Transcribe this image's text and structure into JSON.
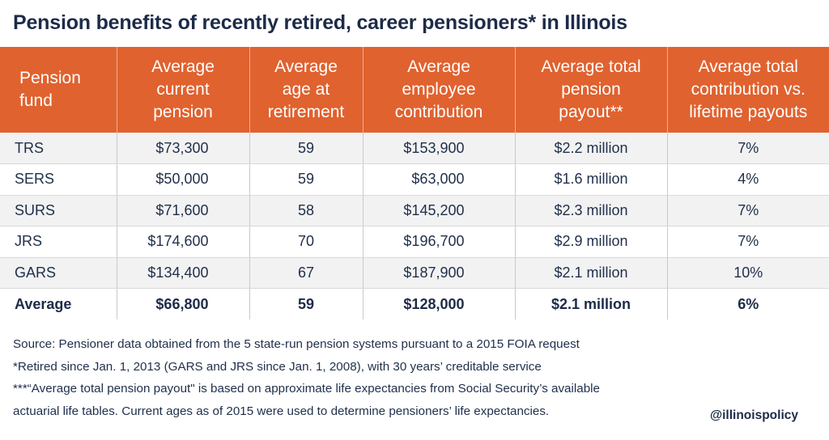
{
  "title": "Pension benefits of recently retired, career pensioners* in Illinois",
  "headers": [
    "Pension\nfund",
    "Average\ncurrent\npension",
    "Average\nage at\nretirement",
    "Average\nemployee\ncontribution",
    "Average total\npension\npayout**",
    "Average total\ncontribution vs.\nlifetime payouts"
  ],
  "rows": [
    {
      "fund": "TRS",
      "pension": "$73,300",
      "age": "59",
      "contribution": "$153,900",
      "payout": "$2.2 million",
      "ratio": "7%"
    },
    {
      "fund": "SERS",
      "pension": "$50,000",
      "age": "59",
      "contribution": "$63,000",
      "payout": "$1.6 million",
      "ratio": "4%"
    },
    {
      "fund": "SURS",
      "pension": "$71,600",
      "age": "58",
      "contribution": "$145,200",
      "payout": "$2.3 million",
      "ratio": "7%"
    },
    {
      "fund": "JRS",
      "pension": "$174,600",
      "age": "70",
      "contribution": "$196,700",
      "payout": "$2.9 million",
      "ratio": "7%"
    },
    {
      "fund": "GARS",
      "pension": "$134,400",
      "age": "67",
      "contribution": "$187,900",
      "payout": "$2.1 million",
      "ratio": "10%"
    },
    {
      "fund": "Average",
      "pension": "$66,800",
      "age": "59",
      "contribution": "$128,000",
      "payout": "$2.1 million",
      "ratio": "6%"
    }
  ],
  "notes": [
    "Source: Pensioner data obtained from the 5 state-run pension systems pursuant to a 2015 FOIA request",
    "*Retired since Jan. 1, 2013 (GARS and JRS since Jan. 1, 2008), with 30 years’ creditable service",
    "***“Average total pension payout\" is based on approximate life expectancies from Social Security’s available",
    "actuarial life tables. Current ages as of 2015 were used to determine pensioners’ life expectancies."
  ],
  "handle": "@illinoispolicy",
  "colors": {
    "header_bg": "#e0622f",
    "title": "#1d2b48",
    "stripe": "#f2f2f2"
  },
  "chart_data": {
    "type": "table",
    "title": "Pension benefits of recently retired, career pensioners* in Illinois",
    "columns": [
      "Pension fund",
      "Average current pension",
      "Average age at retirement",
      "Average employee contribution",
      "Average total pension payout**",
      "Average total contribution vs. lifetime payouts"
    ],
    "rows": [
      [
        "TRS",
        "$73,300",
        "59",
        "$153,900",
        "$2.2 million",
        "7%"
      ],
      [
        "SERS",
        "$50,000",
        "59",
        "$63,000",
        "$1.6 million",
        "4%"
      ],
      [
        "SURS",
        "$71,600",
        "58",
        "$145,200",
        "$2.3 million",
        "7%"
      ],
      [
        "JRS",
        "$174,600",
        "70",
        "$196,700",
        "$2.9 million",
        "7%"
      ],
      [
        "GARS",
        "$134,400",
        "67",
        "$187,900",
        "$2.1 million",
        "10%"
      ],
      [
        "Average",
        "$66,800",
        "59",
        "$128,000",
        "$2.1 million",
        "6%"
      ]
    ]
  }
}
